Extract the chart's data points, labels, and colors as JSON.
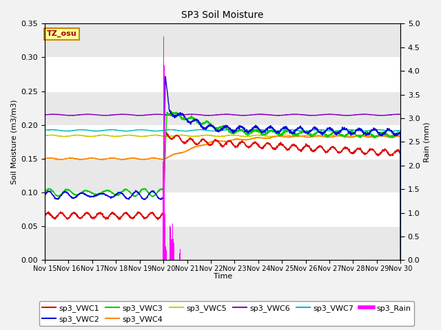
{
  "title": "SP3 Soil Moisture",
  "xlabel": "Time",
  "ylabel_left": "Soil Moisture (m3/m3)",
  "ylabel_right": "Rain (mm)",
  "ylim_left": [
    0.0,
    0.35
  ],
  "ylim_right": [
    0.0,
    5.0
  ],
  "yticks_left": [
    0.0,
    0.05,
    0.1,
    0.15,
    0.2,
    0.25,
    0.3,
    0.35
  ],
  "yticks_right": [
    0.0,
    0.5,
    1.0,
    1.5,
    2.0,
    2.5,
    3.0,
    3.5,
    4.0,
    4.5,
    5.0
  ],
  "xtick_labels": [
    "Nov 15",
    "Nov 16",
    "Nov 17",
    "Nov 18",
    "Nov 19",
    "Nov 20",
    "Nov 21",
    "Nov 22",
    "Nov 23",
    "Nov 24",
    "Nov 25",
    "Nov 26",
    "Nov 27",
    "Nov 28",
    "Nov 29",
    "Nov 30"
  ],
  "bg_color": "#e8e8e8",
  "plot_bg_bands": [
    "#e8e8e8",
    "#d8d8d8"
  ],
  "grid_color": "#ffffff",
  "annotation_text": "TZ_osu",
  "annotation_fgcolor": "#990000",
  "annotation_bgcolor": "#ffff99",
  "annotation_edgecolor": "#cc8800",
  "series_colors": {
    "sp3_VWC1": "#dd0000",
    "sp3_VWC2": "#0000dd",
    "sp3_VWC3": "#00cc00",
    "sp3_VWC4": "#ff8800",
    "sp3_VWC5": "#cccc00",
    "sp3_VWC6": "#8800bb",
    "sp3_VWC7": "#00bbbb",
    "sp3_Rain": "#ff00ff"
  }
}
